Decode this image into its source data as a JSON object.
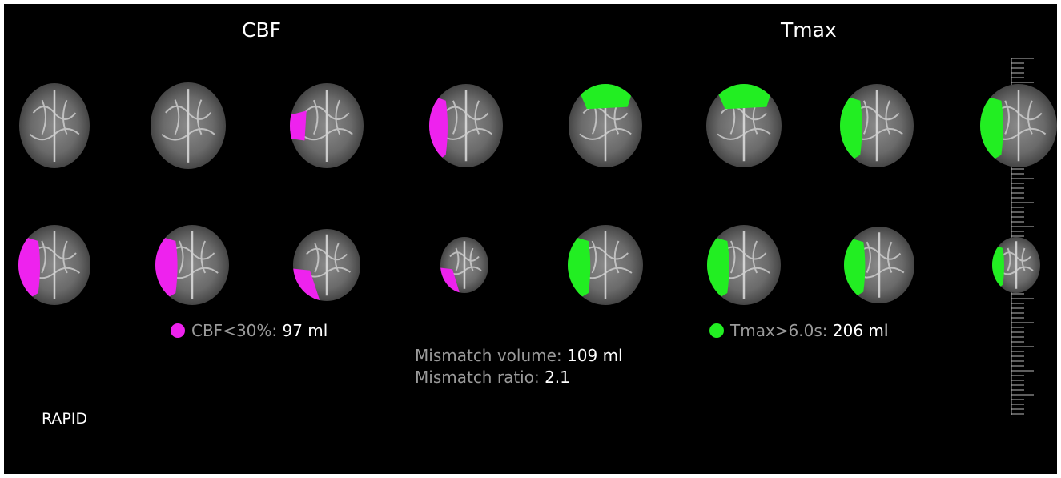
{
  "titles": {
    "left": "CBF",
    "right": "Tmax"
  },
  "legend": {
    "cbf": {
      "label": "CBF<30%:",
      "value": "97 ml",
      "color": "#ee22ee"
    },
    "tmax": {
      "label": "Tmax>6.0s:",
      "value": "206 ml",
      "color": "#22ee22"
    }
  },
  "mismatch": {
    "volume_label": "Mismatch volume:",
    "volume_value": "109 ml",
    "ratio_label": "Mismatch ratio:",
    "ratio_value": "2.1"
  },
  "brand": "RAPID",
  "colors": {
    "background": "#000000",
    "cbf_lesion": "#ee22ee",
    "tmax_lesion": "#22ee22",
    "text_label": "#9a9a9a",
    "text_value": "#ffffff"
  },
  "slices": {
    "cbf_row1": [
      "none",
      "none",
      "small",
      "medium"
    ],
    "cbf_row2": [
      "large",
      "large",
      "medium-posterior",
      "small-posterior"
    ],
    "tmax_row1": [
      "frontal",
      "frontal",
      "large",
      "large"
    ],
    "tmax_row2": [
      "large",
      "large",
      "large",
      "medium"
    ]
  }
}
